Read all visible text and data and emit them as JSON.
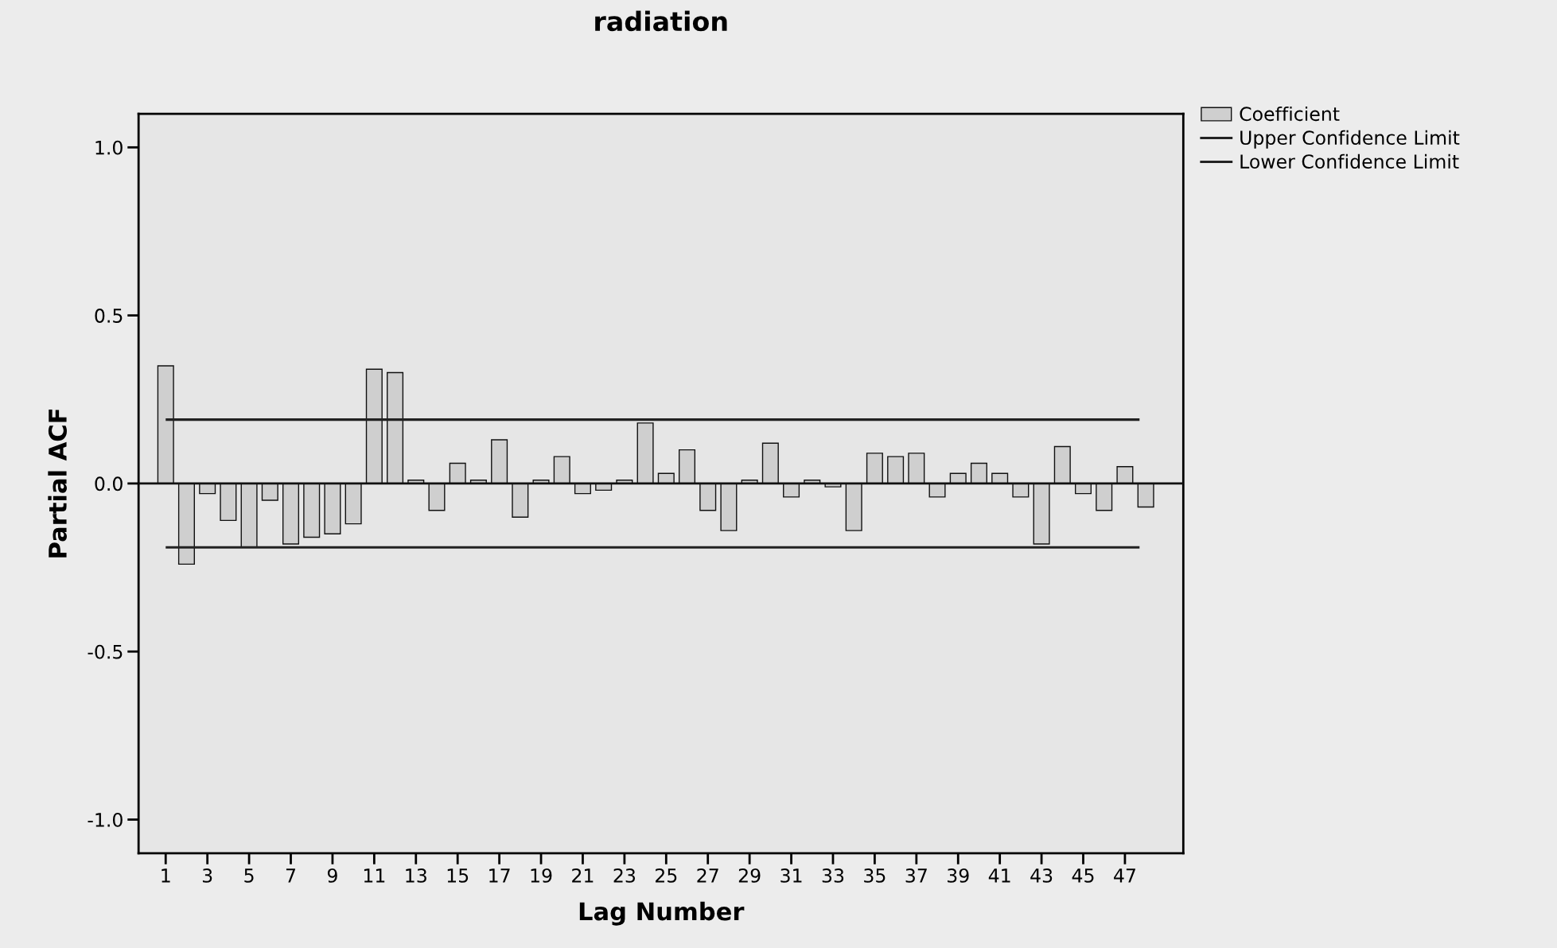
{
  "chart_data": {
    "type": "bar",
    "title": "radiation",
    "xlabel": "Lag Number",
    "ylabel": "Partial ACF",
    "categories": [
      "1",
      null,
      "3",
      null,
      "5",
      null,
      "7",
      null,
      "9",
      null,
      "11",
      null,
      "13",
      null,
      "15",
      null,
      "17",
      null,
      "19",
      null,
      "21",
      null,
      "23",
      null,
      "25",
      null,
      "27",
      null,
      "29",
      null,
      "31",
      null,
      "33",
      null,
      "35",
      null,
      "37",
      null,
      "39",
      null,
      "41",
      null,
      "43",
      null,
      "45",
      null,
      "47",
      null
    ],
    "series": [
      {
        "name": "Coefficient",
        "color": "#cfcfcf",
        "values": [
          0.35,
          -0.24,
          -0.03,
          -0.11,
          -0.19,
          -0.05,
          -0.18,
          -0.16,
          -0.15,
          -0.12,
          0.34,
          0.33,
          0.01,
          -0.08,
          0.06,
          0.01,
          0.13,
          -0.1,
          0.01,
          0.08,
          -0.03,
          -0.02,
          0.01,
          0.18,
          0.03,
          0.1,
          -0.08,
          -0.14,
          0.01,
          0.12,
          -0.04,
          0.01,
          -0.01,
          -0.14,
          0.09,
          0.08,
          0.09,
          -0.04,
          0.03,
          0.06,
          0.03,
          -0.04,
          -0.18,
          0.11,
          -0.03,
          -0.08,
          0.05,
          -0.07
        ]
      }
    ],
    "ref_lines": [
      {
        "axis": "y",
        "value": 0,
        "color": "#111111"
      },
      {
        "axis": "y",
        "value": 0.19,
        "label": "Upper Confidence Limit",
        "color": "#222222"
      },
      {
        "axis": "y",
        "value": -0.19,
        "label": "Lower Confidence Limit",
        "color": "#222222"
      }
    ],
    "ylim": [
      -1.1,
      1.1
    ],
    "yticks": [
      {
        "value": -1,
        "label": "-1.0"
      },
      {
        "value": -0.5,
        "label": "-0.5"
      },
      {
        "value": 0,
        "label": "0.0"
      },
      {
        "value": 0.5,
        "label": "0.5"
      },
      {
        "value": 1,
        "label": "1.0"
      }
    ],
    "grid": false,
    "legend": "top right"
  }
}
